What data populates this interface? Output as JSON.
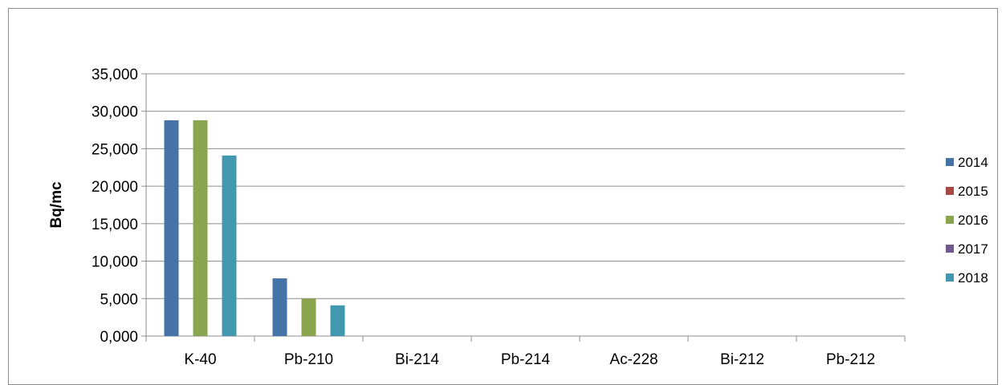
{
  "chart_data": {
    "type": "bar",
    "title": "",
    "xlabel": "",
    "ylabel": "Bq/mc",
    "ylim": [
      0,
      35000
    ],
    "yticks": [
      0,
      5000,
      10000,
      15000,
      20000,
      25000,
      30000,
      35000
    ],
    "ytick_labels": [
      "0,000",
      "5,000",
      "10,000",
      "15,000",
      "20,000",
      "25,000",
      "30,000",
      "35,000"
    ],
    "grid": true,
    "legend_position": "right",
    "categories": [
      "K-40",
      "Pb-210",
      "Bi-214",
      "Pb-214",
      "Ac-228",
      "Bi-212",
      "Pb-212"
    ],
    "series": [
      {
        "name": "2014",
        "color": "#4572A7",
        "values": [
          28800,
          7700,
          0,
          0,
          0,
          0,
          0
        ]
      },
      {
        "name": "2015",
        "color": "#AA4643",
        "values": [
          0,
          0,
          0,
          0,
          0,
          0,
          0
        ]
      },
      {
        "name": "2016",
        "color": "#89A54E",
        "values": [
          28800,
          5000,
          0,
          0,
          0,
          0,
          0
        ]
      },
      {
        "name": "2017",
        "color": "#71588F",
        "values": [
          0,
          0,
          0,
          0,
          0,
          0,
          0
        ]
      },
      {
        "name": "2018",
        "color": "#4198AF",
        "values": [
          24100,
          4100,
          0,
          0,
          0,
          0,
          0
        ]
      }
    ]
  }
}
